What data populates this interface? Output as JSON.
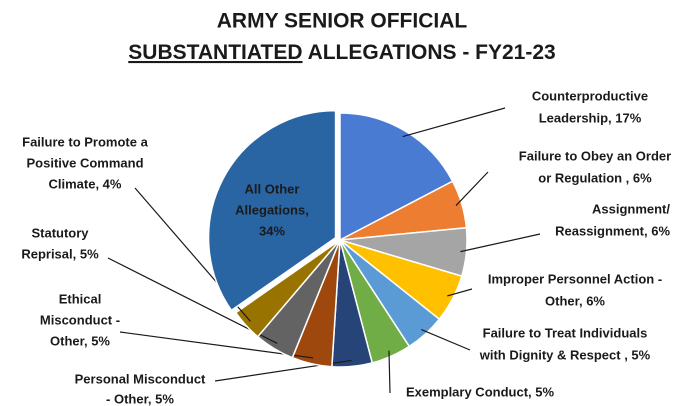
{
  "chart_data": {
    "type": "pie",
    "title": [
      "ARMY SENIOR OFFICIAL",
      "SUBSTANTIATED",
      "ALLEGATIONS - FY21-23"
    ],
    "labels": [
      [
        "Counterproductive",
        "Leadership, 17%"
      ],
      [
        "Failure to Obey an Order",
        "or Regulation , 6%"
      ],
      [
        "Assignment/",
        "Reassignment, 6%"
      ],
      [
        "Improper Personnel Action -",
        "Other, 6%"
      ],
      [
        "Failure to Treat Individuals",
        "with Dignity & Respect  , 5%"
      ],
      [
        "Exemplary Conduct, 5%"
      ],
      [
        "Personal Misconduct",
        "- Other, 5%"
      ],
      [
        "Ethical",
        "Misconduct -",
        "Other, 5%"
      ],
      [
        "Statutory",
        "Reprisal, 5%"
      ],
      [
        "Failure to Promote a",
        "Positive Command",
        "Climate, 4%"
      ],
      [
        "All Other",
        "Allegations,",
        "34%"
      ]
    ],
    "values": [
      17,
      6,
      6,
      6,
      5,
      5,
      5,
      5,
      5,
      4,
      34
    ],
    "colors": [
      "#4a7bd3",
      "#ed7d31",
      "#a5a5a5",
      "#ffc000",
      "#5b9bd5",
      "#70ad47",
      "#264478",
      "#9e480e",
      "#636363",
      "#997300",
      "#2a65a3"
    ]
  }
}
